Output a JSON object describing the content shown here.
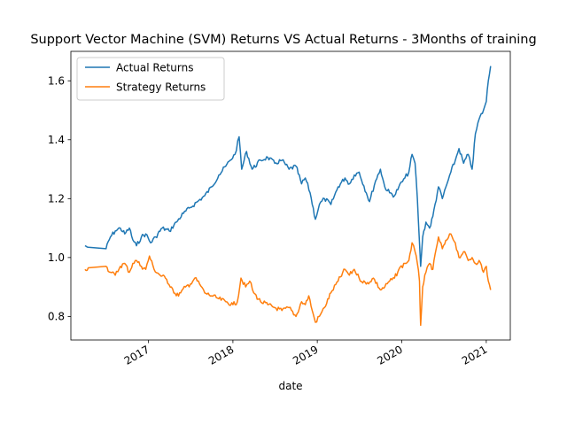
{
  "chart_data": {
    "type": "line",
    "title": "Support Vector Machine (SVM) Returns VS Actual Returns - 3Months of training",
    "xlabel": "date",
    "ylabel": "",
    "x_ticks": [
      "2017",
      "2018",
      "2019",
      "2020",
      "2021"
    ],
    "y_ticks": [
      "0.8",
      "1.0",
      "1.2",
      "1.4",
      "1.6"
    ],
    "ylim": [
      0.72,
      1.7
    ],
    "xlim": [
      "2016-01-31",
      "2021-04-15"
    ],
    "legend_position": "upper-left",
    "grid": false,
    "series": [
      {
        "name": "Actual Returns",
        "color": "#1f77b4",
        "points": [
          [
            "2016-04-01",
            1.04
          ],
          [
            "2016-04-15",
            1.035
          ],
          [
            "2016-07-01",
            1.03
          ],
          [
            "2016-07-20",
            1.07
          ],
          [
            "2016-08-10",
            1.09
          ],
          [
            "2016-09-01",
            1.1
          ],
          [
            "2016-09-20",
            1.08
          ],
          [
            "2016-10-10",
            1.1
          ],
          [
            "2016-10-25",
            1.06
          ],
          [
            "2016-11-10",
            1.04
          ],
          [
            "2016-12-01",
            1.07
          ],
          [
            "2016-12-20",
            1.08
          ],
          [
            "2017-01-10",
            1.05
          ],
          [
            "2017-02-01",
            1.07
          ],
          [
            "2017-03-01",
            1.1
          ],
          [
            "2017-04-01",
            1.09
          ],
          [
            "2017-05-01",
            1.12
          ],
          [
            "2017-06-01",
            1.15
          ],
          [
            "2017-07-01",
            1.17
          ],
          [
            "2017-08-01",
            1.19
          ],
          [
            "2017-09-01",
            1.21
          ],
          [
            "2017-10-01",
            1.24
          ],
          [
            "2017-11-01",
            1.28
          ],
          [
            "2017-12-01",
            1.31
          ],
          [
            "2017-12-20",
            1.33
          ],
          [
            "2018-01-10",
            1.35
          ],
          [
            "2018-01-28",
            1.41
          ],
          [
            "2018-02-08",
            1.3
          ],
          [
            "2018-03-01",
            1.36
          ],
          [
            "2018-03-25",
            1.3
          ],
          [
            "2018-05-01",
            1.33
          ],
          [
            "2018-06-01",
            1.34
          ],
          [
            "2018-07-01",
            1.32
          ],
          [
            "2018-08-01",
            1.33
          ],
          [
            "2018-09-01",
            1.3
          ],
          [
            "2018-10-01",
            1.31
          ],
          [
            "2018-10-25",
            1.25
          ],
          [
            "2018-11-10",
            1.27
          ],
          [
            "2018-12-01",
            1.22
          ],
          [
            "2018-12-24",
            1.13
          ],
          [
            "2019-01-10",
            1.18
          ],
          [
            "2019-02-01",
            1.2
          ],
          [
            "2019-03-01",
            1.18
          ],
          [
            "2019-04-01",
            1.24
          ],
          [
            "2019-05-01",
            1.27
          ],
          [
            "2019-05-20",
            1.25
          ],
          [
            "2019-06-10",
            1.28
          ],
          [
            "2019-07-01",
            1.29
          ],
          [
            "2019-08-01",
            1.22
          ],
          [
            "2019-08-15",
            1.19
          ],
          [
            "2019-09-10",
            1.26
          ],
          [
            "2019-10-01",
            1.3
          ],
          [
            "2019-10-20",
            1.24
          ],
          [
            "2019-11-10",
            1.22
          ],
          [
            "2019-12-01",
            1.21
          ],
          [
            "2019-12-20",
            1.24
          ],
          [
            "2020-01-15",
            1.27
          ],
          [
            "2020-02-01",
            1.29
          ],
          [
            "2020-02-15",
            1.35
          ],
          [
            "2020-02-28",
            1.32
          ],
          [
            "2020-03-09",
            1.2
          ],
          [
            "2020-03-18",
            1.05
          ],
          [
            "2020-03-23",
            0.97
          ],
          [
            "2020-04-01",
            1.07
          ],
          [
            "2020-04-15",
            1.12
          ],
          [
            "2020-05-01",
            1.1
          ],
          [
            "2020-05-15",
            1.14
          ],
          [
            "2020-06-08",
            1.24
          ],
          [
            "2020-06-25",
            1.2
          ],
          [
            "2020-07-15",
            1.25
          ],
          [
            "2020-08-01",
            1.29
          ],
          [
            "2020-08-20",
            1.33
          ],
          [
            "2020-09-05",
            1.37
          ],
          [
            "2020-09-25",
            1.32
          ],
          [
            "2020-10-15",
            1.35
          ],
          [
            "2020-11-01",
            1.3
          ],
          [
            "2020-11-15",
            1.42
          ],
          [
            "2020-12-01",
            1.47
          ],
          [
            "2020-12-20",
            1.5
          ],
          [
            "2021-01-01",
            1.53
          ],
          [
            "2021-01-10",
            1.6
          ],
          [
            "2021-01-20",
            1.65
          ]
        ]
      },
      {
        "name": "Strategy Returns",
        "color": "#ff7f0e",
        "points": [
          [
            "2016-04-01",
            0.96
          ],
          [
            "2016-04-15",
            0.965
          ],
          [
            "2016-07-01",
            0.97
          ],
          [
            "2016-07-20",
            0.95
          ],
          [
            "2016-08-10",
            0.94
          ],
          [
            "2016-09-01",
            0.97
          ],
          [
            "2016-09-20",
            0.98
          ],
          [
            "2016-10-10",
            0.95
          ],
          [
            "2016-10-25",
            0.98
          ],
          [
            "2016-11-10",
            0.99
          ],
          [
            "2016-12-01",
            0.97
          ],
          [
            "2016-12-20",
            0.96
          ],
          [
            "2017-01-05",
            1.005
          ],
          [
            "2017-01-25",
            0.96
          ],
          [
            "2017-02-20",
            0.94
          ],
          [
            "2017-03-15",
            0.93
          ],
          [
            "2017-04-10",
            0.9
          ],
          [
            "2017-05-01",
            0.87
          ],
          [
            "2017-05-20",
            0.88
          ],
          [
            "2017-06-10",
            0.9
          ],
          [
            "2017-07-01",
            0.91
          ],
          [
            "2017-07-20",
            0.93
          ],
          [
            "2017-08-10",
            0.91
          ],
          [
            "2017-09-01",
            0.88
          ],
          [
            "2017-10-01",
            0.87
          ],
          [
            "2017-11-01",
            0.86
          ],
          [
            "2017-12-01",
            0.85
          ],
          [
            "2018-01-01",
            0.84
          ],
          [
            "2018-01-20",
            0.85
          ],
          [
            "2018-02-05",
            0.93
          ],
          [
            "2018-02-25",
            0.9
          ],
          [
            "2018-03-15",
            0.92
          ],
          [
            "2018-04-01",
            0.88
          ],
          [
            "2018-05-01",
            0.85
          ],
          [
            "2018-06-01",
            0.84
          ],
          [
            "2018-07-01",
            0.83
          ],
          [
            "2018-08-01",
            0.82
          ],
          [
            "2018-09-01",
            0.83
          ],
          [
            "2018-10-01",
            0.8
          ],
          [
            "2018-10-25",
            0.85
          ],
          [
            "2018-11-10",
            0.84
          ],
          [
            "2018-11-25",
            0.87
          ],
          [
            "2018-12-10",
            0.82
          ],
          [
            "2018-12-24",
            0.78
          ],
          [
            "2019-01-10",
            0.8
          ],
          [
            "2019-02-01",
            0.83
          ],
          [
            "2019-03-01",
            0.88
          ],
          [
            "2019-04-01",
            0.92
          ],
          [
            "2019-05-01",
            0.96
          ],
          [
            "2019-05-20",
            0.94
          ],
          [
            "2019-06-10",
            0.96
          ],
          [
            "2019-07-01",
            0.93
          ],
          [
            "2019-08-01",
            0.91
          ],
          [
            "2019-09-01",
            0.93
          ],
          [
            "2019-10-01",
            0.89
          ],
          [
            "2019-10-20",
            0.9
          ],
          [
            "2019-11-10",
            0.92
          ],
          [
            "2019-12-01",
            0.93
          ],
          [
            "2019-12-20",
            0.96
          ],
          [
            "2020-01-15",
            0.98
          ],
          [
            "2020-02-01",
            0.99
          ],
          [
            "2020-02-15",
            1.05
          ],
          [
            "2020-02-28",
            1.02
          ],
          [
            "2020-03-09",
            0.98
          ],
          [
            "2020-03-18",
            0.92
          ],
          [
            "2020-03-23",
            0.77
          ],
          [
            "2020-04-01",
            0.9
          ],
          [
            "2020-04-15",
            0.95
          ],
          [
            "2020-05-01",
            0.98
          ],
          [
            "2020-05-15",
            0.96
          ],
          [
            "2020-06-08",
            1.07
          ],
          [
            "2020-06-25",
            1.03
          ],
          [
            "2020-07-15",
            1.06
          ],
          [
            "2020-08-01",
            1.08
          ],
          [
            "2020-08-20",
            1.05
          ],
          [
            "2020-09-05",
            1.0
          ],
          [
            "2020-09-25",
            1.02
          ],
          [
            "2020-10-15",
            0.99
          ],
          [
            "2020-11-01",
            1.0
          ],
          [
            "2020-11-15",
            0.98
          ],
          [
            "2020-12-01",
            0.99
          ],
          [
            "2020-12-20",
            0.95
          ],
          [
            "2021-01-01",
            0.97
          ],
          [
            "2021-01-10",
            0.92
          ],
          [
            "2021-01-20",
            0.89
          ]
        ]
      }
    ]
  }
}
